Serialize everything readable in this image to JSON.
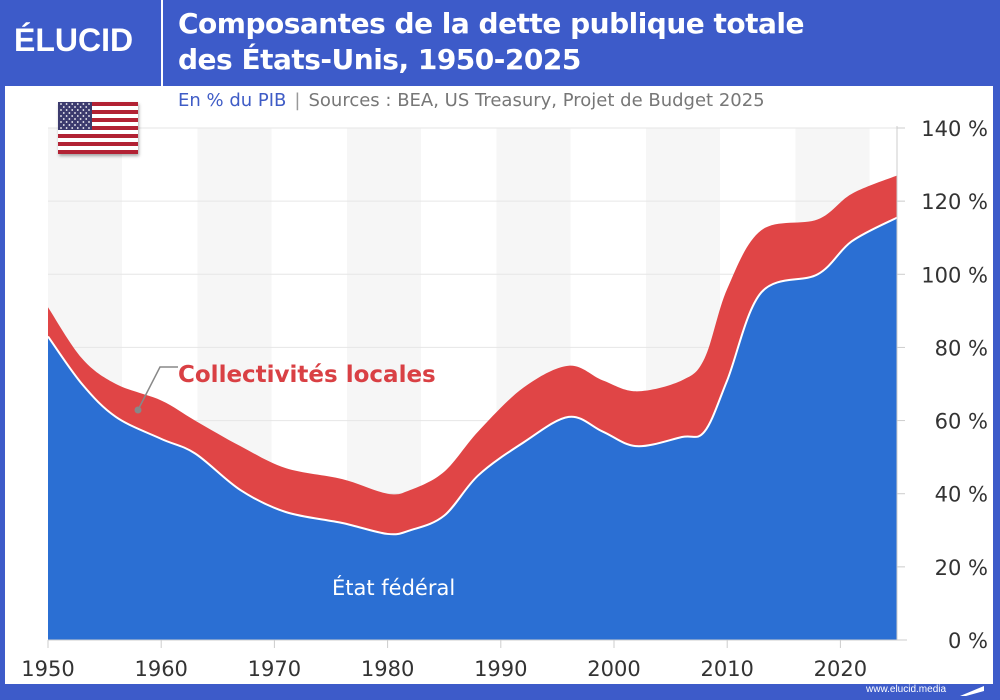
{
  "header": {
    "logo": "ÉLUCID",
    "title_line1": "Composantes de la dette publique totale",
    "title_line2": "des États-Unis, 1950-2025",
    "unit": "En % du PIB",
    "separator": "|",
    "sources": "Sources : BEA, US Treasury, Projet de Budget 2025",
    "flag_icon": "us-flag-icon"
  },
  "footer": {
    "url": "www.elucid.media"
  },
  "colors": {
    "frame": "#3d5bc9",
    "federal": "#2b6fd3",
    "local": "#e04546",
    "label_local": "#d94044"
  },
  "chart_data": {
    "type": "area",
    "stacked": true,
    "title": "Composantes de la dette publique totale des États-Unis, 1950-2025",
    "xlabel": "",
    "ylabel": "En % du PIB",
    "xlim": [
      1950,
      2025
    ],
    "ylim": [
      0,
      140
    ],
    "x_ticks": [
      "1950",
      "1960",
      "1970",
      "1980",
      "1990",
      "2000",
      "2010",
      "2020"
    ],
    "y_ticks": [
      "0 %",
      "20 %",
      "40 %",
      "60 %",
      "80 %",
      "100 %",
      "120 %",
      "140 %"
    ],
    "y_axis_side": "right",
    "grid": true,
    "x": [
      1950,
      1953,
      1956,
      1960,
      1963,
      1967,
      1971,
      1976,
      1980,
      1982,
      1985,
      1988,
      1992,
      1996,
      1999,
      2002,
      2006,
      2008,
      2010,
      2013,
      2018,
      2021,
      2025
    ],
    "series": [
      {
        "name": "État fédéral",
        "values": [
          83,
          70,
          61,
          55,
          51,
          41,
          35,
          32,
          29,
          30,
          34,
          45,
          54,
          61,
          57,
          53,
          55.5,
          57,
          71,
          95,
          100,
          109,
          115.5
        ]
      },
      {
        "name": "Collectivités locales",
        "values": [
          8,
          7,
          9,
          10.5,
          9,
          12,
          12,
          12,
          11,
          11,
          12,
          12,
          15,
          14,
          14,
          15,
          15.5,
          20,
          25,
          17,
          15,
          13,
          11.5
        ]
      }
    ],
    "totals": [
      91,
      77,
      70,
      65.5,
      60,
      53,
      47,
      44,
      40,
      41,
      46,
      57,
      69,
      75,
      71,
      68,
      71,
      77,
      96,
      112,
      115,
      122,
      127
    ]
  }
}
